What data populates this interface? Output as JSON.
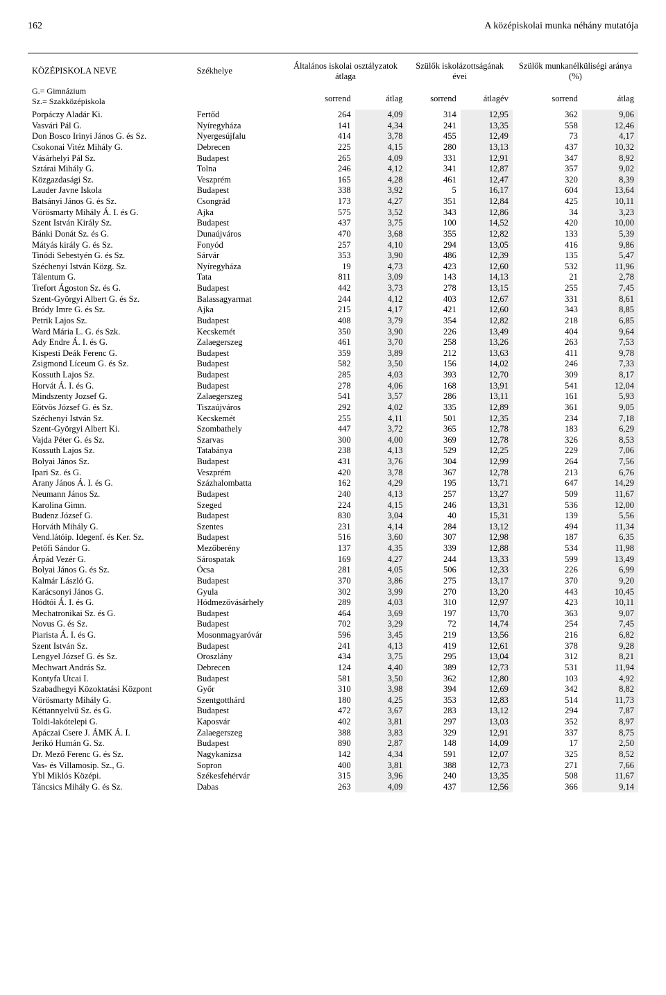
{
  "page_number": "162",
  "page_title": "A középiskolai munka néhány mutatója",
  "columns": {
    "name": "KÖZÉPISKOLA NEVE",
    "location": "Székhelye",
    "group1": "Általános iskolai osztályzatok átlaga",
    "group2": "Szülők iskolázottságának évei",
    "group3": "Szülők munkanélküliségi aránya (%)",
    "sub_sorrend": "sorrend",
    "sub_atlag": "átlag",
    "sub_atlagev": "átlagév"
  },
  "legend": {
    "g": "G.= Gimnázium",
    "sz": "Sz.= Szakközépiskola"
  },
  "rows": [
    [
      "Porpáczy Aladár Ki.",
      "Fertőd",
      "264",
      "4,09",
      "314",
      "12,95",
      "362",
      "9,06"
    ],
    [
      "Vasvári Pál G.",
      "Nyíregyháza",
      "141",
      "4,34",
      "241",
      "13,35",
      "558",
      "12,46"
    ],
    [
      "Don Bosco Irinyi János G. és Sz.",
      "Nyergesújfalu",
      "414",
      "3,78",
      "455",
      "12,49",
      "73",
      "4,17"
    ],
    [
      "Csokonai Vitéz Mihály G.",
      "Debrecen",
      "225",
      "4,15",
      "280",
      "13,13",
      "437",
      "10,32"
    ],
    [
      "Vásárhelyi Pál Sz.",
      "Budapest",
      "265",
      "4,09",
      "331",
      "12,91",
      "347",
      "8,92"
    ],
    [
      "Sztárai Mihály G.",
      "Tolna",
      "246",
      "4,12",
      "341",
      "12,87",
      "357",
      "9,02"
    ],
    [
      "Közgazdasági Sz.",
      "Veszprém",
      "165",
      "4,28",
      "461",
      "12,47",
      "320",
      "8,39"
    ],
    [
      "Lauder Javne Iskola",
      "Budapest",
      "338",
      "3,92",
      "5",
      "16,17",
      "604",
      "13,64"
    ],
    [
      "Batsányi János G. és Sz.",
      "Csongrád",
      "173",
      "4,27",
      "351",
      "12,84",
      "425",
      "10,11"
    ],
    [
      "Vörösmarty Mihály Á. I. és G.",
      "Ajka",
      "575",
      "3,52",
      "343",
      "12,86",
      "34",
      "3,23"
    ],
    [
      "Szent István Király Sz.",
      "Budapest",
      "437",
      "3,75",
      "100",
      "14,52",
      "420",
      "10,00"
    ],
    [
      "Bánki Donát Sz. és G.",
      "Dunaújváros",
      "470",
      "3,68",
      "355",
      "12,82",
      "133",
      "5,39"
    ],
    [
      "Mátyás király G. és Sz.",
      "Fonyód",
      "257",
      "4,10",
      "294",
      "13,05",
      "416",
      "9,86"
    ],
    [
      "Tinódi Sebestyén G. és Sz.",
      "Sárvár",
      "353",
      "3,90",
      "486",
      "12,39",
      "135",
      "5,47"
    ],
    [
      "Széchenyi István Közg. Sz.",
      "Nyíregyháza",
      "19",
      "4,73",
      "423",
      "12,60",
      "532",
      "11,96"
    ],
    [
      "Tálentum G.",
      "Tata",
      "811",
      "3,09",
      "143",
      "14,13",
      "21",
      "2,78"
    ],
    [
      "Trefort Ágoston Sz. és G.",
      "Budapest",
      "442",
      "3,73",
      "278",
      "13,15",
      "255",
      "7,45"
    ],
    [
      "Szent-Györgyi Albert G. és Sz.",
      "Balassagyarmat",
      "244",
      "4,12",
      "403",
      "12,67",
      "331",
      "8,61"
    ],
    [
      "Bródy Imre G. és Sz.",
      "Ajka",
      "215",
      "4,17",
      "421",
      "12,60",
      "343",
      "8,85"
    ],
    [
      "Petrik Lajos Sz.",
      "Budapest",
      "408",
      "3,79",
      "354",
      "12,82",
      "218",
      "6,85"
    ],
    [
      "Ward Mária L. G. és Szk.",
      "Kecskemét",
      "350",
      "3,90",
      "226",
      "13,49",
      "404",
      "9,64"
    ],
    [
      "Ady Endre Á. I. és G.",
      "Zalaegerszeg",
      "461",
      "3,70",
      "258",
      "13,26",
      "263",
      "7,53"
    ],
    [
      "Kispesti Deák Ferenc G.",
      "Budapest",
      "359",
      "3,89",
      "212",
      "13,63",
      "411",
      "9,78"
    ],
    [
      "Zsigmond Líceum G. és Sz.",
      "Budapest",
      "582",
      "3,50",
      "156",
      "14,02",
      "246",
      "7,33"
    ],
    [
      "Kossuth Lajos Sz.",
      "Budapest",
      "285",
      "4,03",
      "393",
      "12,70",
      "309",
      "8,17"
    ],
    [
      "Horvát Á. I. és G.",
      "Budapest",
      "278",
      "4,06",
      "168",
      "13,91",
      "541",
      "12,04"
    ],
    [
      "Mindszenty Jozsef G.",
      "Zalaegerszeg",
      "541",
      "3,57",
      "286",
      "13,11",
      "161",
      "5,93"
    ],
    [
      "Eötvös József G. és Sz.",
      "Tiszaújváros",
      "292",
      "4,02",
      "335",
      "12,89",
      "361",
      "9,05"
    ],
    [
      "Széchenyi István Sz.",
      "Kecskemét",
      "255",
      "4,11",
      "501",
      "12,35",
      "234",
      "7,18"
    ],
    [
      "Szent-Györgyi Albert Ki.",
      "Szombathely",
      "447",
      "3,72",
      "365",
      "12,78",
      "183",
      "6,29"
    ],
    [
      "Vajda Péter G. és Sz.",
      "Szarvas",
      "300",
      "4,00",
      "369",
      "12,78",
      "326",
      "8,53"
    ],
    [
      "Kossuth Lajos Sz.",
      "Tatabánya",
      "238",
      "4,13",
      "529",
      "12,25",
      "229",
      "7,06"
    ],
    [
      "Bolyai János Sz.",
      "Budapest",
      "431",
      "3,76",
      "304",
      "12,99",
      "264",
      "7,56"
    ],
    [
      "Ipari Sz. és G.",
      "Veszprém",
      "420",
      "3,78",
      "367",
      "12,78",
      "213",
      "6,76"
    ],
    [
      "Arany János Á. I. és G.",
      "Százhalombatta",
      "162",
      "4,29",
      "195",
      "13,71",
      "647",
      "14,29"
    ],
    [
      "Neumann János Sz.",
      "Budapest",
      "240",
      "4,13",
      "257",
      "13,27",
      "509",
      "11,67"
    ],
    [
      "Karolina  Gimn.",
      "Szeged",
      "224",
      "4,15",
      "246",
      "13,31",
      "536",
      "12,00"
    ],
    [
      "Budenz József G.",
      "Budapest",
      "830",
      "3,04",
      "40",
      "15,31",
      "139",
      "5,56"
    ],
    [
      "Horváth Mihály G.",
      "Szentes",
      "231",
      "4,14",
      "284",
      "13,12",
      "494",
      "11,34"
    ],
    [
      "Vend.látóip. Idegenf. és Ker. Sz.",
      "Budapest",
      "516",
      "3,60",
      "307",
      "12,98",
      "187",
      "6,35"
    ],
    [
      "Petőfi Sándor G.",
      "Mezőberény",
      "137",
      "4,35",
      "339",
      "12,88",
      "534",
      "11,98"
    ],
    [
      "Árpád Vezér G.",
      "Sárospatak",
      "169",
      "4,27",
      "244",
      "13,33",
      "599",
      "13,49"
    ],
    [
      "Bolyai János G. és Sz.",
      "Ócsa",
      "281",
      "4,05",
      "506",
      "12,33",
      "226",
      "6,99"
    ],
    [
      "Kalmár László G.",
      "Budapest",
      "370",
      "3,86",
      "275",
      "13,17",
      "370",
      "9,20"
    ],
    [
      "Karácsonyi János G.",
      "Gyula",
      "302",
      "3,99",
      "270",
      "13,20",
      "443",
      "10,45"
    ],
    [
      "Hódtói Á. I. és G.",
      "Hódmezővásárhely",
      "289",
      "4,03",
      "310",
      "12,97",
      "423",
      "10,11"
    ],
    [
      "Mechatronikai Sz. és G.",
      "Budapest",
      "464",
      "3,69",
      "197",
      "13,70",
      "363",
      "9,07"
    ],
    [
      "Novus G. és Sz.",
      "Budapest",
      "702",
      "3,29",
      "72",
      "14,74",
      "254",
      "7,45"
    ],
    [
      "Piarista Á. I. és G.",
      "Mosonmagyaróvár",
      "596",
      "3,45",
      "219",
      "13,56",
      "216",
      "6,82"
    ],
    [
      "Szent István Sz.",
      "Budapest",
      "241",
      "4,13",
      "419",
      "12,61",
      "378",
      "9,28"
    ],
    [
      "Lengyel József G. és Sz.",
      "Oroszlány",
      "434",
      "3,75",
      "295",
      "13,04",
      "312",
      "8,21"
    ],
    [
      "Mechwart András Sz.",
      "Debrecen",
      "124",
      "4,40",
      "389",
      "12,73",
      "531",
      "11,94"
    ],
    [
      "Kontyfa Utcai I.",
      "Budapest",
      "581",
      "3,50",
      "362",
      "12,80",
      "103",
      "4,92"
    ],
    [
      "Szabadhegyi Közoktatási Központ",
      "Győr",
      "310",
      "3,98",
      "394",
      "12,69",
      "342",
      "8,82"
    ],
    [
      "Vörösmarty Mihály G.",
      "Szentgotthárd",
      "180",
      "4,25",
      "353",
      "12,83",
      "514",
      "11,73"
    ],
    [
      "Kéttannyelvű Sz. és G.",
      "Budapest",
      "472",
      "3,67",
      "283",
      "13,12",
      "294",
      "7,87"
    ],
    [
      "Toldi-lakótelepi G.",
      "Kaposvár",
      "402",
      "3,81",
      "297",
      "13,03",
      "352",
      "8,97"
    ],
    [
      "Apáczai Csere J. ÁMK Á. I.",
      "Zalaegerszeg",
      "388",
      "3,83",
      "329",
      "12,91",
      "337",
      "8,75"
    ],
    [
      "Jerikó Humán G. Sz.",
      "Budapest",
      "890",
      "2,87",
      "148",
      "14,09",
      "17",
      "2,50"
    ],
    [
      "Dr. Mező Ferenc G. és Sz.",
      "Nagykanizsa",
      "142",
      "4,34",
      "591",
      "12,07",
      "325",
      "8,52"
    ],
    [
      "Vas- és Villamosip. Sz., G.",
      "Sopron",
      "400",
      "3,81",
      "388",
      "12,73",
      "271",
      "7,66"
    ],
    [
      "Ybl Miklós Középi.",
      "Székesfehérvár",
      "315",
      "3,96",
      "240",
      "13,35",
      "508",
      "11,67"
    ],
    [
      "Táncsics Mihály G. és Sz.",
      "Dabas",
      "263",
      "4,09",
      "437",
      "12,56",
      "366",
      "9,14"
    ]
  ]
}
